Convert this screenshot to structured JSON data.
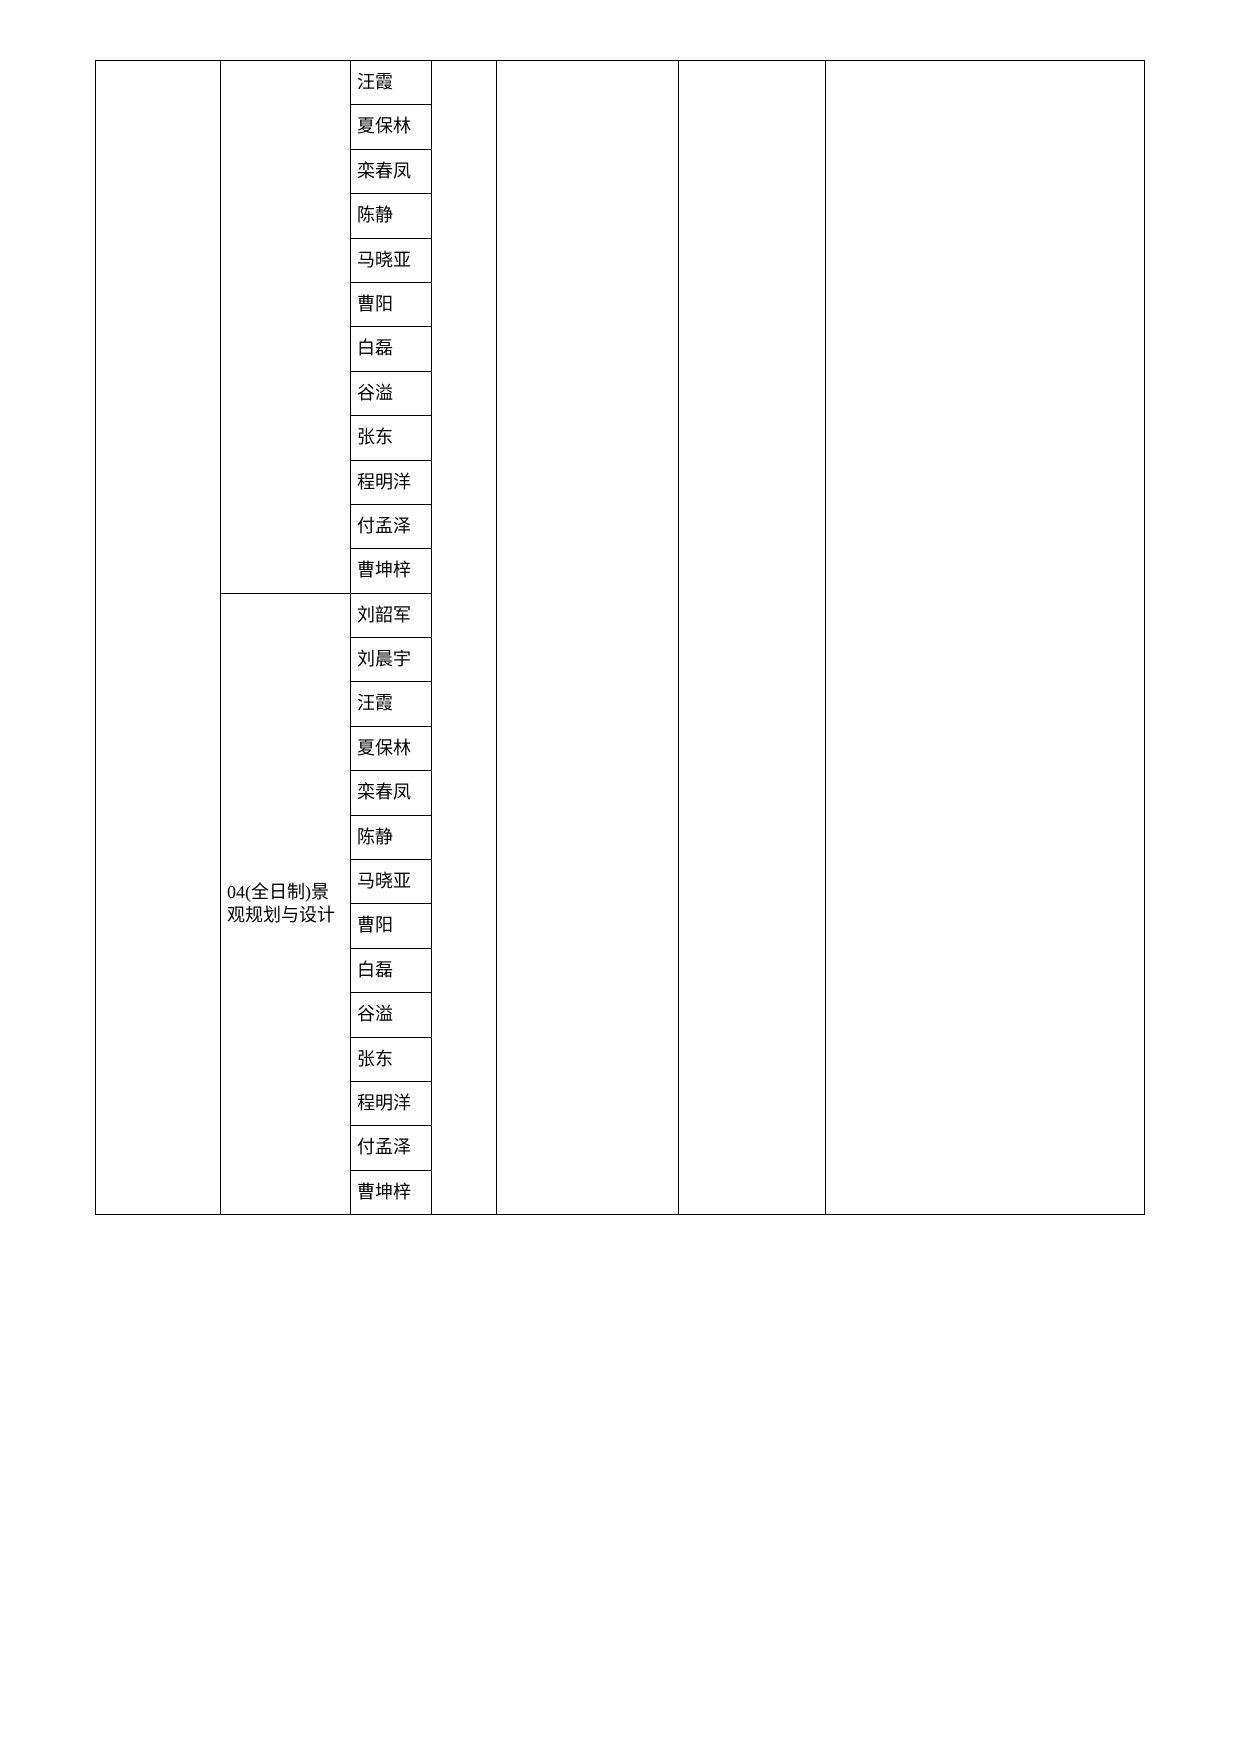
{
  "table": {
    "category_label": "04(全日制)景观规划与设计",
    "group1_names": [
      "汪霞",
      "夏保林",
      "栾春凤",
      "陈静",
      "马晓亚",
      "曹阳",
      "白磊",
      "谷溢",
      "张东",
      "程明洋",
      "付孟泽",
      "曹坤梓"
    ],
    "group2_names": [
      "刘韶军",
      "刘晨宇",
      "汪霞",
      "夏保林",
      "栾春凤",
      "陈静",
      "马晓亚",
      "曹阳",
      "白磊",
      "谷溢",
      "张东",
      "程明洋",
      "付孟泽",
      "曹坤梓"
    ],
    "colors": {
      "border": "#000000",
      "background": "#ffffff",
      "text": "#000000"
    },
    "font_size": 18
  }
}
